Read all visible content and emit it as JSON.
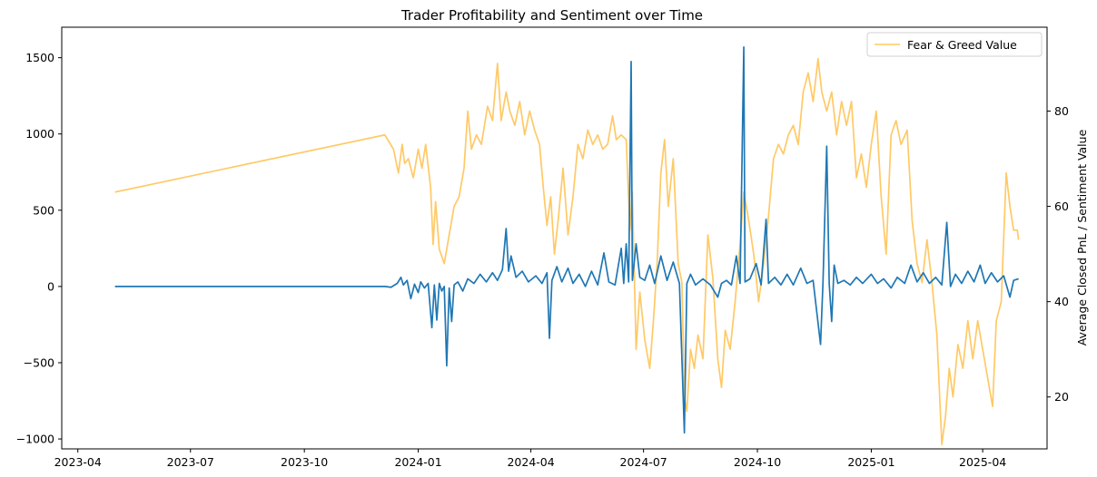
{
  "chart_data": {
    "type": "line",
    "title": "Trader Profitability and Sentiment over Time",
    "xlabel": "",
    "ylabel_left": "",
    "ylabel_right": "Average Closed PnL / Sentiment Value",
    "x_ticks": [
      "2023-04",
      "2023-07",
      "2023-10",
      "2024-01",
      "2024-04",
      "2024-07",
      "2024-10",
      "2025-01",
      "2025-04"
    ],
    "y_left_ticks": [
      -1000,
      -500,
      0,
      500,
      1000,
      1500
    ],
    "y_right_ticks": [
      20,
      40,
      60,
      80
    ],
    "xlim": [
      "2023-03-19",
      "2025-05-23"
    ],
    "ylim_left": [
      -1065,
      1700
    ],
    "ylim_right": [
      9.1,
      97.6
    ],
    "grid": false,
    "legend_position": "top-right",
    "series": [
      {
        "name": "",
        "axis": "left",
        "color": "#1f77b4",
        "points": [
          [
            "2023-05-01",
            0
          ],
          [
            "2023-12-05",
            0
          ],
          [
            "2023-12-10",
            -5
          ],
          [
            "2023-12-15",
            20
          ],
          [
            "2023-12-18",
            60
          ],
          [
            "2023-12-20",
            10
          ],
          [
            "2023-12-23",
            40
          ],
          [
            "2023-12-26",
            -80
          ],
          [
            "2023-12-29",
            15
          ],
          [
            "2024-01-01",
            -40
          ],
          [
            "2024-01-03",
            30
          ],
          [
            "2024-01-06",
            -10
          ],
          [
            "2024-01-09",
            20
          ],
          [
            "2024-01-12",
            -270
          ],
          [
            "2024-01-14",
            10
          ],
          [
            "2024-01-16",
            -220
          ],
          [
            "2024-01-18",
            20
          ],
          [
            "2024-01-20",
            -30
          ],
          [
            "2024-01-22",
            0
          ],
          [
            "2024-01-24",
            -520
          ],
          [
            "2024-01-26",
            -10
          ],
          [
            "2024-01-28",
            -230
          ],
          [
            "2024-01-30",
            10
          ],
          [
            "2024-02-02",
            30
          ],
          [
            "2024-02-06",
            -30
          ],
          [
            "2024-02-10",
            50
          ],
          [
            "2024-02-15",
            20
          ],
          [
            "2024-02-20",
            80
          ],
          [
            "2024-02-25",
            30
          ],
          [
            "2024-03-01",
            90
          ],
          [
            "2024-03-05",
            40
          ],
          [
            "2024-03-09",
            110
          ],
          [
            "2024-03-12",
            380
          ],
          [
            "2024-03-14",
            100
          ],
          [
            "2024-03-16",
            200
          ],
          [
            "2024-03-20",
            60
          ],
          [
            "2024-03-25",
            100
          ],
          [
            "2024-03-30",
            30
          ],
          [
            "2024-04-05",
            70
          ],
          [
            "2024-04-10",
            20
          ],
          [
            "2024-04-14",
            90
          ],
          [
            "2024-04-16",
            -340
          ],
          [
            "2024-04-18",
            40
          ],
          [
            "2024-04-22",
            130
          ],
          [
            "2024-04-26",
            30
          ],
          [
            "2024-05-01",
            120
          ],
          [
            "2024-05-05",
            20
          ],
          [
            "2024-05-10",
            80
          ],
          [
            "2024-05-15",
            0
          ],
          [
            "2024-05-20",
            100
          ],
          [
            "2024-05-25",
            10
          ],
          [
            "2024-05-30",
            220
          ],
          [
            "2024-06-03",
            30
          ],
          [
            "2024-06-08",
            10
          ],
          [
            "2024-06-13",
            250
          ],
          [
            "2024-06-15",
            20
          ],
          [
            "2024-06-17",
            280
          ],
          [
            "2024-06-19",
            30
          ],
          [
            "2024-06-21",
            1475
          ],
          [
            "2024-06-22",
            40
          ],
          [
            "2024-06-25",
            280
          ],
          [
            "2024-06-28",
            60
          ],
          [
            "2024-07-02",
            40
          ],
          [
            "2024-07-06",
            140
          ],
          [
            "2024-07-10",
            20
          ],
          [
            "2024-07-15",
            200
          ],
          [
            "2024-07-20",
            40
          ],
          [
            "2024-07-25",
            160
          ],
          [
            "2024-07-30",
            20
          ],
          [
            "2024-08-03",
            -960
          ],
          [
            "2024-08-05",
            20
          ],
          [
            "2024-08-08",
            80
          ],
          [
            "2024-08-12",
            10
          ],
          [
            "2024-08-18",
            50
          ],
          [
            "2024-08-24",
            10
          ],
          [
            "2024-08-30",
            -70
          ],
          [
            "2024-09-02",
            20
          ],
          [
            "2024-09-06",
            40
          ],
          [
            "2024-09-10",
            10
          ],
          [
            "2024-09-14",
            200
          ],
          [
            "2024-09-17",
            20
          ],
          [
            "2024-09-20",
            1570
          ],
          [
            "2024-09-21",
            30
          ],
          [
            "2024-09-25",
            50
          ],
          [
            "2024-09-30",
            150
          ],
          [
            "2024-10-04",
            10
          ],
          [
            "2024-10-08",
            440
          ],
          [
            "2024-10-10",
            20
          ],
          [
            "2024-10-15",
            60
          ],
          [
            "2024-10-20",
            10
          ],
          [
            "2024-10-25",
            80
          ],
          [
            "2024-10-30",
            10
          ],
          [
            "2024-11-05",
            120
          ],
          [
            "2024-11-10",
            20
          ],
          [
            "2024-11-15",
            40
          ],
          [
            "2024-11-21",
            -380
          ],
          [
            "2024-11-23",
            30
          ],
          [
            "2024-11-26",
            920
          ],
          [
            "2024-11-28",
            20
          ],
          [
            "2024-11-30",
            -230
          ],
          [
            "2024-12-02",
            140
          ],
          [
            "2024-12-05",
            20
          ],
          [
            "2024-12-10",
            40
          ],
          [
            "2024-12-15",
            10
          ],
          [
            "2024-12-20",
            60
          ],
          [
            "2024-12-25",
            20
          ],
          [
            "2025-01-01",
            80
          ],
          [
            "2025-01-06",
            20
          ],
          [
            "2025-01-11",
            50
          ],
          [
            "2025-01-17",
            -10
          ],
          [
            "2025-01-22",
            60
          ],
          [
            "2025-01-28",
            20
          ],
          [
            "2025-02-02",
            140
          ],
          [
            "2025-02-07",
            30
          ],
          [
            "2025-02-12",
            90
          ],
          [
            "2025-02-17",
            20
          ],
          [
            "2025-02-22",
            60
          ],
          [
            "2025-02-27",
            10
          ],
          [
            "2025-03-03",
            420
          ],
          [
            "2025-03-06",
            0
          ],
          [
            "2025-03-10",
            80
          ],
          [
            "2025-03-15",
            20
          ],
          [
            "2025-03-20",
            100
          ],
          [
            "2025-03-25",
            30
          ],
          [
            "2025-03-30",
            140
          ],
          [
            "2025-04-03",
            20
          ],
          [
            "2025-04-08",
            90
          ],
          [
            "2025-04-13",
            30
          ],
          [
            "2025-04-18",
            70
          ],
          [
            "2025-04-23",
            -70
          ],
          [
            "2025-04-26",
            40
          ],
          [
            "2025-04-30",
            50
          ]
        ]
      },
      {
        "name": "Fear & Greed Value",
        "axis": "right",
        "color": "#ffc966",
        "points": [
          [
            "2023-05-01",
            63
          ],
          [
            "2023-12-05",
            75
          ],
          [
            "2023-12-12",
            72
          ],
          [
            "2023-12-16",
            67
          ],
          [
            "2023-12-19",
            73
          ],
          [
            "2023-12-21",
            69
          ],
          [
            "2023-12-24",
            70
          ],
          [
            "2023-12-28",
            66
          ],
          [
            "2024-01-01",
            72
          ],
          [
            "2024-01-04",
            68
          ],
          [
            "2024-01-07",
            73
          ],
          [
            "2024-01-11",
            64
          ],
          [
            "2024-01-13",
            52
          ],
          [
            "2024-01-15",
            61
          ],
          [
            "2024-01-18",
            51
          ],
          [
            "2024-01-22",
            48
          ],
          [
            "2024-01-26",
            54
          ],
          [
            "2024-01-30",
            60
          ],
          [
            "2024-02-03",
            62
          ],
          [
            "2024-02-07",
            68
          ],
          [
            "2024-02-10",
            80
          ],
          [
            "2024-02-13",
            72
          ],
          [
            "2024-02-17",
            75
          ],
          [
            "2024-02-21",
            73
          ],
          [
            "2024-02-26",
            81
          ],
          [
            "2024-03-01",
            78
          ],
          [
            "2024-03-05",
            90
          ],
          [
            "2024-03-08",
            78
          ],
          [
            "2024-03-12",
            84
          ],
          [
            "2024-03-15",
            80
          ],
          [
            "2024-03-19",
            77
          ],
          [
            "2024-03-23",
            82
          ],
          [
            "2024-03-27",
            75
          ],
          [
            "2024-03-31",
            80
          ],
          [
            "2024-04-04",
            76
          ],
          [
            "2024-04-08",
            73
          ],
          [
            "2024-04-11",
            64
          ],
          [
            "2024-04-14",
            56
          ],
          [
            "2024-04-17",
            62
          ],
          [
            "2024-04-20",
            50
          ],
          [
            "2024-04-23",
            57
          ],
          [
            "2024-04-27",
            68
          ],
          [
            "2024-05-01",
            54
          ],
          [
            "2024-05-05",
            62
          ],
          [
            "2024-05-09",
            73
          ],
          [
            "2024-05-13",
            70
          ],
          [
            "2024-05-17",
            76
          ],
          [
            "2024-05-21",
            73
          ],
          [
            "2024-05-25",
            75
          ],
          [
            "2024-05-29",
            72
          ],
          [
            "2024-06-02",
            73
          ],
          [
            "2024-06-06",
            79
          ],
          [
            "2024-06-09",
            74
          ],
          [
            "2024-06-13",
            75
          ],
          [
            "2024-06-17",
            74
          ],
          [
            "2024-06-20",
            55
          ],
          [
            "2024-06-22",
            63
          ],
          [
            "2024-06-25",
            30
          ],
          [
            "2024-06-28",
            42
          ],
          [
            "2024-07-02",
            32
          ],
          [
            "2024-07-06",
            26
          ],
          [
            "2024-07-09",
            36
          ],
          [
            "2024-07-12",
            48
          ],
          [
            "2024-07-15",
            67
          ],
          [
            "2024-07-18",
            74
          ],
          [
            "2024-07-21",
            60
          ],
          [
            "2024-07-25",
            70
          ],
          [
            "2024-07-29",
            48
          ],
          [
            "2024-08-01",
            44
          ],
          [
            "2024-08-03",
            20
          ],
          [
            "2024-08-05",
            17
          ],
          [
            "2024-08-08",
            30
          ],
          [
            "2024-08-11",
            26
          ],
          [
            "2024-08-14",
            33
          ],
          [
            "2024-08-18",
            28
          ],
          [
            "2024-08-22",
            54
          ],
          [
            "2024-08-26",
            45
          ],
          [
            "2024-08-30",
            28
          ],
          [
            "2024-09-02",
            22
          ],
          [
            "2024-09-05",
            34
          ],
          [
            "2024-09-09",
            30
          ],
          [
            "2024-09-13",
            40
          ],
          [
            "2024-09-17",
            52
          ],
          [
            "2024-09-20",
            63
          ],
          [
            "2024-09-24",
            57
          ],
          [
            "2024-09-28",
            50
          ],
          [
            "2024-10-02",
            40
          ],
          [
            "2024-10-06",
            48
          ],
          [
            "2024-10-10",
            58
          ],
          [
            "2024-10-14",
            70
          ],
          [
            "2024-10-18",
            73
          ],
          [
            "2024-10-22",
            71
          ],
          [
            "2024-10-26",
            75
          ],
          [
            "2024-10-30",
            77
          ],
          [
            "2024-11-03",
            73
          ],
          [
            "2024-11-07",
            84
          ],
          [
            "2024-11-11",
            88
          ],
          [
            "2024-11-15",
            82
          ],
          [
            "2024-11-19",
            91
          ],
          [
            "2024-11-22",
            84
          ],
          [
            "2024-11-26",
            80
          ],
          [
            "2024-11-30",
            84
          ],
          [
            "2024-12-04",
            75
          ],
          [
            "2024-12-08",
            82
          ],
          [
            "2024-12-12",
            77
          ],
          [
            "2024-12-16",
            82
          ],
          [
            "2024-12-20",
            66
          ],
          [
            "2024-12-24",
            71
          ],
          [
            "2024-12-28",
            64
          ],
          [
            "2025-01-01",
            73
          ],
          [
            "2025-01-05",
            80
          ],
          [
            "2025-01-09",
            62
          ],
          [
            "2025-01-13",
            50
          ],
          [
            "2025-01-17",
            75
          ],
          [
            "2025-01-21",
            78
          ],
          [
            "2025-01-25",
            73
          ],
          [
            "2025-01-30",
            76
          ],
          [
            "2025-02-03",
            57
          ],
          [
            "2025-02-07",
            48
          ],
          [
            "2025-02-11",
            44
          ],
          [
            "2025-02-15",
            53
          ],
          [
            "2025-02-19",
            44
          ],
          [
            "2025-02-23",
            33
          ],
          [
            "2025-02-27",
            10
          ],
          [
            "2025-03-02",
            16
          ],
          [
            "2025-03-05",
            26
          ],
          [
            "2025-03-08",
            20
          ],
          [
            "2025-03-12",
            31
          ],
          [
            "2025-03-16",
            26
          ],
          [
            "2025-03-20",
            36
          ],
          [
            "2025-03-24",
            28
          ],
          [
            "2025-03-28",
            36
          ],
          [
            "2025-04-01",
            30
          ],
          [
            "2025-04-05",
            24
          ],
          [
            "2025-04-09",
            18
          ],
          [
            "2025-04-12",
            36
          ],
          [
            "2025-04-16",
            40
          ],
          [
            "2025-04-20",
            67
          ],
          [
            "2025-04-23",
            60
          ],
          [
            "2025-04-26",
            55
          ],
          [
            "2025-04-29",
            55
          ],
          [
            "2025-04-30",
            53
          ]
        ]
      }
    ]
  }
}
